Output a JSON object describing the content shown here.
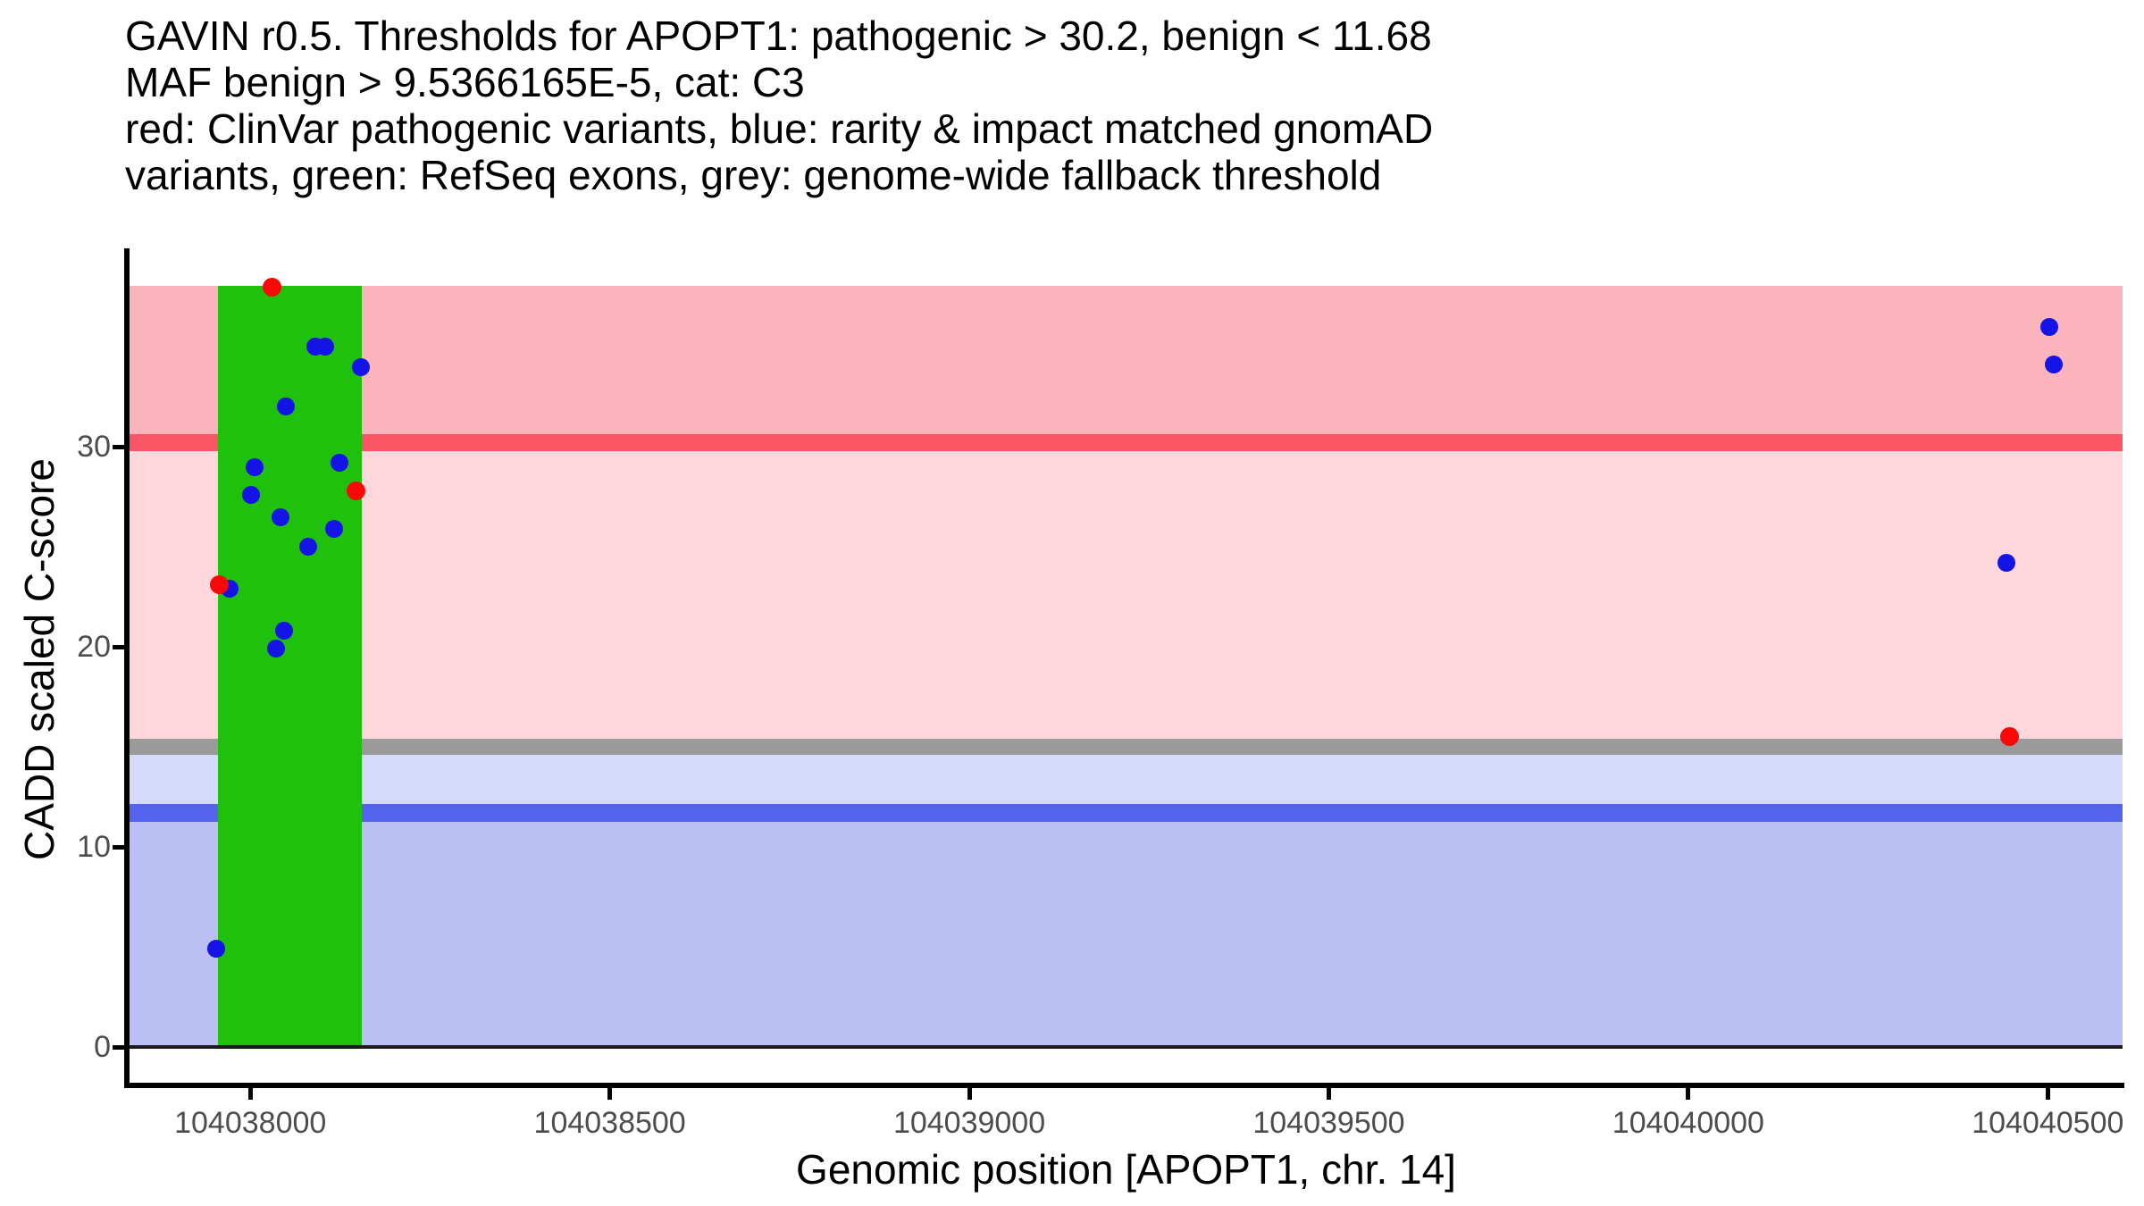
{
  "title": {
    "lines": [
      "GAVIN r0.5. Thresholds for APOPT1: pathogenic > 30.2, benign < 11.68",
      "MAF benign > 9.5366165E-5, cat: C3",
      "red: ClinVar pathogenic variants, blue: rarity & impact matched gnomAD",
      "variants, green: RefSeq exons, grey: genome-wide fallback threshold"
    ]
  },
  "chart_data": {
    "type": "scatter",
    "title": "GAVIN r0.5. Thresholds for APOPT1: pathogenic > 30.2, benign < 11.68",
    "subtitle": "MAF benign > 9.5366165E-5, cat: C3",
    "legend_note": "red: ClinVar pathogenic variants, blue: rarity & impact matched gnomAD variants, green: RefSeq exons, grey: genome-wide fallback threshold",
    "xlabel": "Genomic position [APOPT1, chr. 14]",
    "ylabel": "CADD scaled C-score",
    "xlim": [
      104037832,
      104040604
    ],
    "ylim": [
      0,
      38.05
    ],
    "x_ticks": [
      104038000,
      104038500,
      104039000,
      104039500,
      104040000,
      104040500
    ],
    "y_ticks": [
      0,
      10,
      20,
      30
    ],
    "grid": false,
    "legend_position": "none",
    "thresholds": {
      "pathogenic_cadd": 30.2,
      "benign_cadd": 11.68,
      "genome_wide_fallback_cadd": 15.0,
      "maf_benign": "9.5366165E-5",
      "category": "C3"
    },
    "exon_region": {
      "start": 104037955,
      "end": 104038155,
      "label": "RefSeq exons"
    },
    "series": [
      {
        "name": "rarity & impact matched gnomAD variants",
        "color": "#1414E6",
        "points": [
          {
            "x": 104037953,
            "y": 4.9
          },
          {
            "x": 104037971,
            "y": 22.9
          },
          {
            "x": 104038001,
            "y": 27.6
          },
          {
            "x": 104038006,
            "y": 29.0
          },
          {
            "x": 104038036,
            "y": 19.9
          },
          {
            "x": 104038042,
            "y": 26.5
          },
          {
            "x": 104038047,
            "y": 20.8
          },
          {
            "x": 104038050,
            "y": 32.0
          },
          {
            "x": 104038081,
            "y": 25.0
          },
          {
            "x": 104038090,
            "y": 35.0
          },
          {
            "x": 104038104,
            "y": 35.0
          },
          {
            "x": 104038116,
            "y": 25.9
          },
          {
            "x": 104038124,
            "y": 29.2
          },
          {
            "x": 104038154,
            "y": 34.0
          },
          {
            "x": 104040442,
            "y": 24.2
          },
          {
            "x": 104040502,
            "y": 36.0
          },
          {
            "x": 104040508,
            "y": 34.1
          }
        ]
      },
      {
        "name": "ClinVar pathogenic variants",
        "color": "#FA0808",
        "points": [
          {
            "x": 104038030,
            "y": 38.0
          },
          {
            "x": 104038147,
            "y": 27.8
          },
          {
            "x": 104037957,
            "y": 23.1
          },
          {
            "x": 104040447,
            "y": 15.5
          }
        ]
      }
    ],
    "colors": {
      "pathogenic_region": "#FBB4BC",
      "vous_region": "#FDD7DC",
      "benign_upper_region": "#D6DAFA",
      "benign_region": "#BAC0F3",
      "pathogenic_line": "#FA5564",
      "benign_line": "#5564EE",
      "fallback_line": "#9A9A9A",
      "exon_band": "#1FC10D",
      "zero_line": "#1A1A1A",
      "axis_text": "#4D4D4D",
      "axis_line": "#000000"
    }
  }
}
